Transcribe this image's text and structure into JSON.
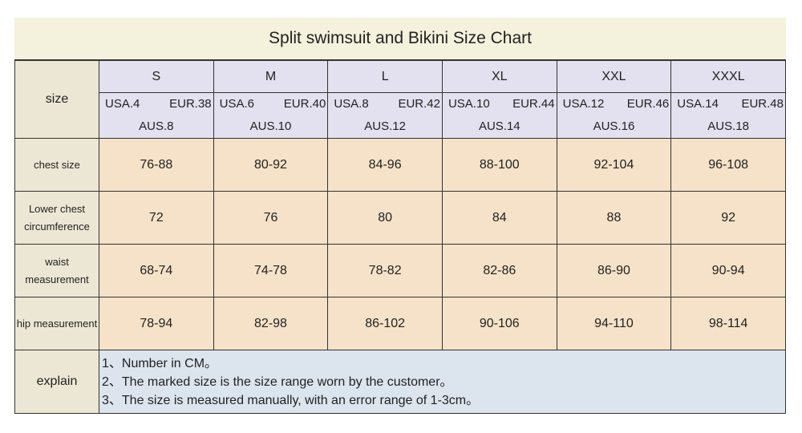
{
  "title": "Split swimsuit and Bikini Size Chart",
  "size_label": "size",
  "sizes": [
    {
      "name": "S",
      "usa": "USA.4",
      "eur": "EUR.38",
      "aus": "AUS.8"
    },
    {
      "name": "M",
      "usa": "USA.6",
      "eur": "EUR.40",
      "aus": "AUS.10"
    },
    {
      "name": "L",
      "usa": "USA.8",
      "eur": "EUR.42",
      "aus": "AUS.12"
    },
    {
      "name": "XL",
      "usa": "USA.10",
      "eur": "EUR.44",
      "aus": "AUS.14"
    },
    {
      "name": "XXL",
      "usa": "USA.12",
      "eur": "EUR.46",
      "aus": "AUS.16"
    },
    {
      "name": "XXXL",
      "usa": "USA.14",
      "eur": "EUR.48",
      "aus": "AUS.18"
    }
  ],
  "rows": [
    {
      "label": "chest size",
      "values": [
        "76-88",
        "80-92",
        "84-96",
        "88-100",
        "92-104",
        "96-108"
      ]
    },
    {
      "label": "Lower chest circumference",
      "values": [
        "72",
        "76",
        "80",
        "84",
        "88",
        "92"
      ]
    },
    {
      "label": "waist measurement",
      "values": [
        "68-74",
        "74-78",
        "78-82",
        "82-86",
        "86-90",
        "90-94"
      ]
    },
    {
      "label": "hip measurement",
      "values": [
        "78-94",
        "82-98",
        "86-102",
        "90-106",
        "94-110",
        "98-114"
      ]
    }
  ],
  "explain": {
    "label": "explain",
    "lines": [
      "1、Number in CM。",
      "2、The marked size is the size range worn by the customer。",
      "3、The size is measured manually, with an error range of 1-3cm。"
    ]
  }
}
